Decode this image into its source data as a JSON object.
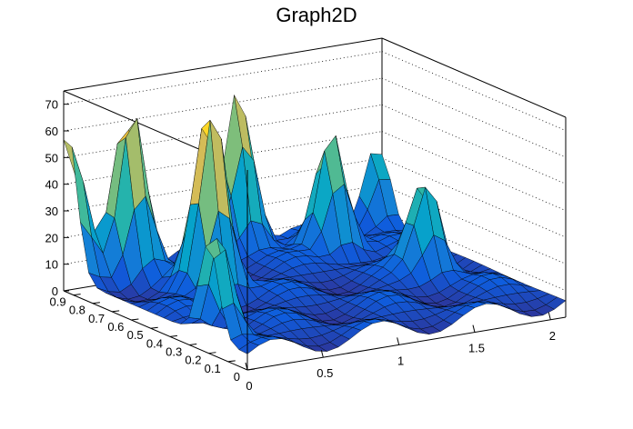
{
  "chart_data": {
    "type": "surface",
    "title": "Graph2D",
    "xlabel": "",
    "ylabel": "",
    "zlabel": "",
    "xlim": [
      0,
      2.1
    ],
    "ylim": [
      0,
      0.95
    ],
    "zlim": [
      0,
      75
    ],
    "x_ticks": [
      "0",
      "0.5",
      "1",
      "1.5",
      "2"
    ],
    "y_ticks": [
      "0",
      "0.1",
      "0.2",
      "0.3",
      "0.4",
      "0.5",
      "0.6",
      "0.7",
      "0.8",
      "0.9"
    ],
    "z_ticks": [
      "0",
      "10",
      "20",
      "30",
      "40",
      "50",
      "60",
      "70"
    ],
    "x_tick_values": [
      0,
      0.5,
      1,
      1.5,
      2
    ],
    "y_tick_values": [
      0,
      0.1,
      0.2,
      0.3,
      0.4,
      0.5,
      0.6,
      0.7,
      0.8,
      0.9
    ],
    "z_tick_values": [
      0,
      10,
      20,
      30,
      40,
      50,
      60,
      70
    ],
    "peaks": [
      {
        "x": 0.0,
        "y": 0.93,
        "z": 55
      },
      {
        "x": 0.35,
        "y": 0.88,
        "z": 64
      },
      {
        "x": 0.55,
        "y": 0.62,
        "z": 70
      },
      {
        "x": 0.05,
        "y": 0.2,
        "z": 42
      },
      {
        "x": 1.15,
        "y": 0.95,
        "z": 62
      },
      {
        "x": 1.55,
        "y": 0.78,
        "z": 48
      },
      {
        "x": 1.75,
        "y": 0.45,
        "z": 36
      },
      {
        "x": 2.05,
        "y": 0.95,
        "z": 30
      }
    ],
    "palette": [
      "#352a87",
      "#0f5cdd",
      "#1481d6",
      "#06a4ca",
      "#2eb7a4",
      "#87bf77",
      "#d1bb59",
      "#fec832",
      "#f9fb0e"
    ],
    "grid": true
  }
}
